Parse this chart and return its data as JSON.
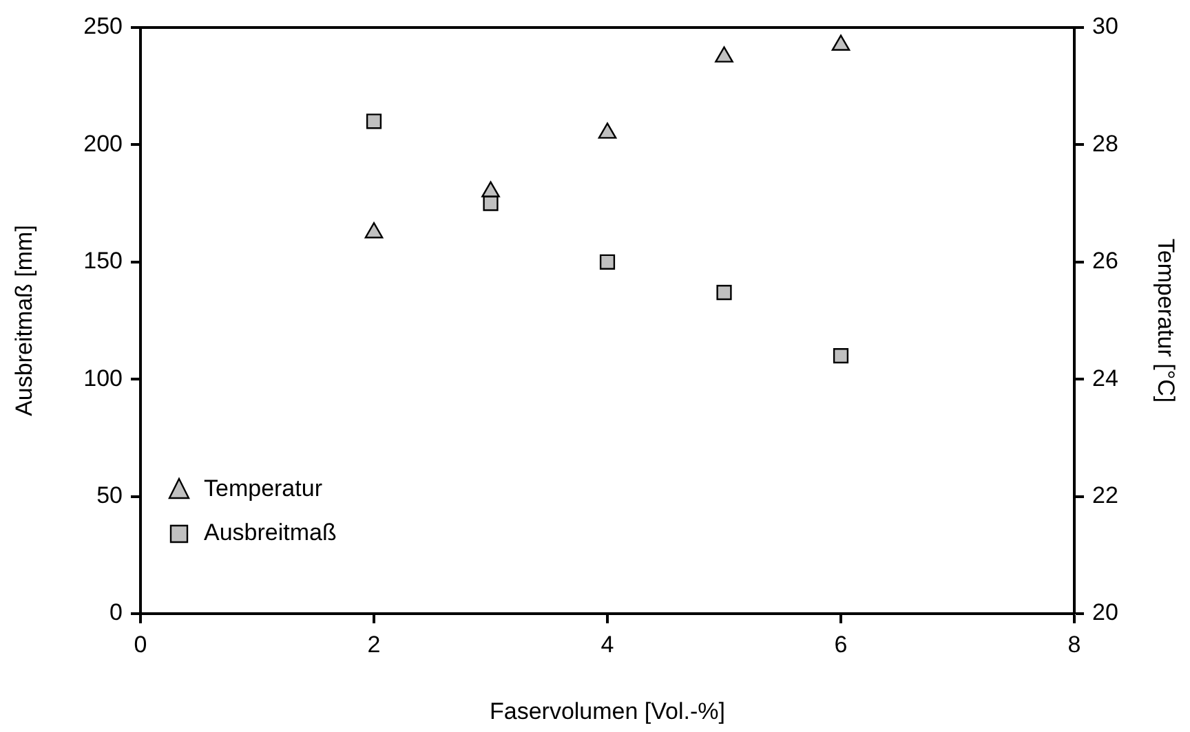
{
  "chart_data": {
    "type": "scatter",
    "xlabel": "Faservolumen [Vol.-%]",
    "ylabel": "Ausbreitmaß [mm]",
    "y2label": "Temperatur [°C]",
    "xlim": [
      0,
      8
    ],
    "xticks": [
      0,
      2,
      4,
      6,
      8
    ],
    "ylim": [
      0,
      250
    ],
    "yticks": [
      0,
      50,
      100,
      150,
      200,
      250
    ],
    "y2lim": [
      20,
      30
    ],
    "y2ticks": [
      20,
      22,
      24,
      26,
      28,
      30
    ],
    "grid": false,
    "legend": "bottom left",
    "series": [
      {
        "name": "Temperatur",
        "color": "#c0c0c0",
        "marker": "triangle",
        "axis": "y2",
        "x": [
          2,
          3,
          4,
          5,
          6
        ],
        "values": [
          26.5,
          27.2,
          28.2,
          29.5,
          29.7
        ]
      },
      {
        "name": "Ausbreitmaß",
        "color": "#c0c0c0",
        "marker": "square",
        "x": [
          2,
          3,
          4,
          5,
          6
        ],
        "values": [
          210,
          175,
          150,
          137,
          110
        ]
      }
    ]
  }
}
